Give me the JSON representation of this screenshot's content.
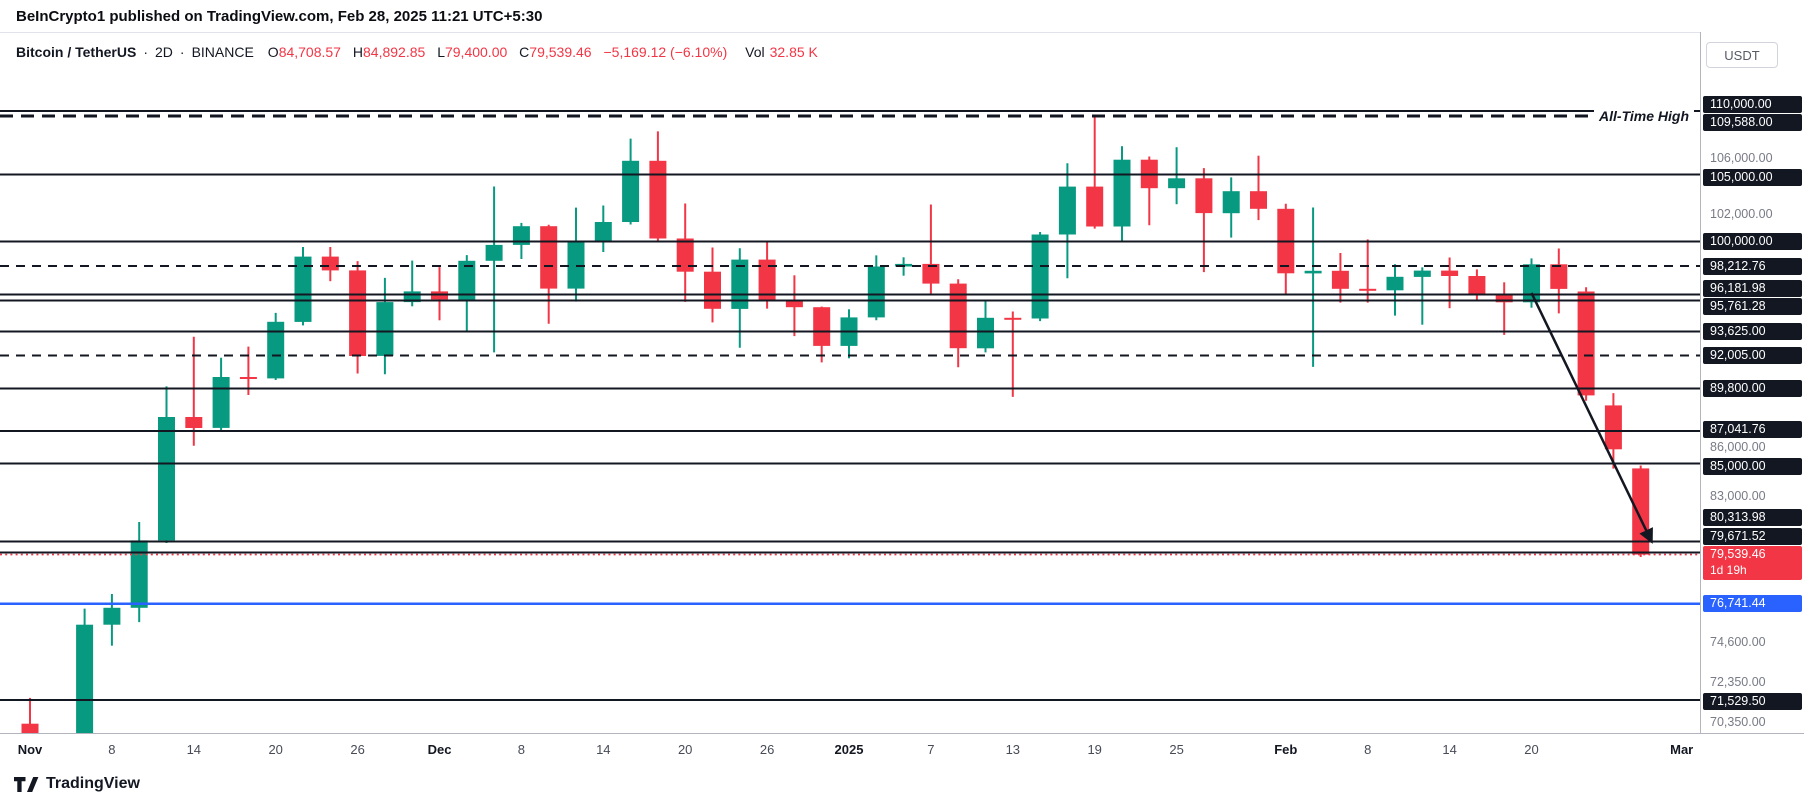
{
  "page": {
    "header": "BeInCrypto1 published on TradingView.com, Feb 28, 2025 11:21 UTC+5:30",
    "footer_logo": "TradingView"
  },
  "currency_button": "USDT",
  "legend": {
    "symbol": "Bitcoin / TetherUS",
    "separator": "·",
    "interval": "2D",
    "exchange": "BINANCE",
    "ohlc": [
      {
        "label": "O",
        "value": "84,708.57"
      },
      {
        "label": "H",
        "value": "84,892.85"
      },
      {
        "label": "L",
        "value": "79,400.00"
      },
      {
        "label": "C",
        "value": "79,539.46"
      }
    ],
    "change": "−5,169.12 (−6.10%)",
    "vol_label": "Vol",
    "vol_value": "32.85 K"
  },
  "colors": {
    "up": "#089981",
    "down": "#F23645",
    "line": "#131722",
    "support_line": "#2962FF",
    "axis_text": "#787B86",
    "badge_bg": "#131722",
    "current_badge_bg": "#F23645",
    "support_badge_bg": "#2962FF"
  },
  "chart_data": {
    "type": "candlestick",
    "symbol": "Bitcoin / TetherUS",
    "exchange": "BINANCE",
    "interval": "2D",
    "quote_currency": "USDT",
    "price_scale_type": "log",
    "grid": false,
    "legend_position": "top-left",
    "up_color": "#089981",
    "down_color": "#F23645",
    "visible_price_range": [
      70350,
      110000
    ],
    "candles_ohlc": [
      [
        70293,
        71632,
        68820,
        69289
      ],
      [
        69289,
        69440,
        66835,
        67811
      ],
      [
        67811,
        76460,
        67478,
        75571
      ],
      [
        75571,
        77283,
        74416,
        76509
      ],
      [
        76509,
        81460,
        75714,
        80370
      ],
      [
        80370,
        89940,
        80216,
        87952
      ],
      [
        87952,
        93265,
        86127,
        87250
      ],
      [
        87250,
        91850,
        87072,
        90558
      ],
      [
        90558,
        92594,
        89376,
        90464
      ],
      [
        90464,
        94905,
        90364,
        94286
      ],
      [
        94286,
        99588,
        94040,
        98892
      ],
      [
        98892,
        99588,
        97128,
        97900
      ],
      [
        97900,
        98564,
        90791,
        91965
      ],
      [
        91965,
        97361,
        90745,
        95652
      ],
      [
        95652,
        98599,
        95364,
        96405
      ],
      [
        96405,
        98130,
        94395,
        95840
      ],
      [
        95840,
        99000,
        93578,
        98587
      ],
      [
        98587,
        104088,
        92205,
        99740
      ],
      [
        99740,
        101351,
        98713,
        101109
      ],
      [
        101109,
        101215,
        94150,
        96604
      ],
      [
        96604,
        102495,
        95689,
        100004
      ],
      [
        100004,
        102650,
        99225,
        101420
      ],
      [
        101420,
        107793,
        101235,
        106058
      ],
      [
        106058,
        108364,
        99950,
        100204
      ],
      [
        100204,
        102800,
        95672,
        97805
      ],
      [
        97805,
        99550,
        94250,
        95186
      ],
      [
        95186,
        99495,
        92520,
        98676
      ],
      [
        98676,
        99963,
        95199,
        95795
      ],
      [
        95795,
        97544,
        93310,
        95300
      ],
      [
        95300,
        95340,
        91530,
        92643
      ],
      [
        92643,
        95151,
        91804,
        94591
      ],
      [
        94591,
        98976,
        94392,
        98174
      ],
      [
        98174,
        98837,
        97515,
        98363
      ],
      [
        98363,
        102724,
        96171,
        96954
      ],
      [
        96954,
        97268,
        91203,
        92484
      ],
      [
        92484,
        95836,
        92206,
        94566
      ],
      [
        94566,
        95000,
        89256,
        94516
      ],
      [
        94516,
        100681,
        94336,
        100497
      ],
      [
        100497,
        105865,
        97335,
        104077
      ],
      [
        104077,
        109588,
        100934,
        101089
      ],
      [
        101089,
        107200,
        99957,
        106146
      ],
      [
        106146,
        106394,
        101180,
        103960
      ],
      [
        103960,
        107120,
        102750,
        104714
      ],
      [
        104714,
        105498,
        97777,
        102082
      ],
      [
        102082,
        104782,
        100272,
        103733
      ],
      [
        103733,
        106457,
        101560,
        102405
      ],
      [
        102405,
        102789,
        96210,
        97688
      ],
      [
        97688,
        102500,
        91231,
        97871
      ],
      [
        97871,
        99149,
        95620,
        96593
      ],
      [
        96593,
        100138,
        95618,
        96482
      ],
      [
        96482,
        98345,
        94714,
        97437
      ],
      [
        97437,
        98119,
        94088,
        97885
      ],
      [
        97885,
        98826,
        95233,
        97500
      ],
      [
        97500,
        97972,
        95791,
        96175
      ],
      [
        96175,
        97047,
        93388,
        95639
      ],
      [
        95639,
        98756,
        95263,
        98333
      ],
      [
        98333,
        99475,
        94871,
        96578
      ],
      [
        96400,
        96700,
        89000,
        89350
      ],
      [
        88700,
        89500,
        84700,
        85900
      ],
      [
        84708.57,
        84892.85,
        79400,
        79539.46
      ]
    ],
    "price_axis_labels": [
      {
        "text": "110,000.00",
        "price": 110000,
        "style": "line"
      },
      {
        "text": "109,588.00",
        "price": 109588,
        "style": "line"
      },
      {
        "text": "106,000.00",
        "price": 106000,
        "style": "tick"
      },
      {
        "text": "105,000.00",
        "price": 105000,
        "style": "line"
      },
      {
        "text": "102,000.00",
        "price": 102000,
        "style": "tick"
      },
      {
        "text": "100,000.00",
        "price": 100000,
        "style": "line"
      },
      {
        "text": "98,212.76",
        "price": 98212.76,
        "style": "line"
      },
      {
        "text": "96,181.98",
        "price": 96181.98,
        "style": "line"
      },
      {
        "text": "95,761.28",
        "price": 95761.28,
        "style": "line"
      },
      {
        "text": "93,625.00",
        "price": 93625,
        "style": "line"
      },
      {
        "text": "92,005.00",
        "price": 92005,
        "style": "line"
      },
      {
        "text": "89,800.00",
        "price": 89800,
        "style": "line"
      },
      {
        "text": "87,041.76",
        "price": 87041.76,
        "style": "line"
      },
      {
        "text": "86,000.00",
        "price": 86000,
        "style": "tick"
      },
      {
        "text": "85,000.00",
        "price": 85000,
        "style": "line"
      },
      {
        "text": "83,000.00",
        "price": 83000,
        "style": "tick"
      },
      {
        "text": "80,313.98",
        "price": 80313.98,
        "style": "line"
      },
      {
        "text": "79,671.52",
        "price": 79671.52,
        "style": "line"
      },
      {
        "text": "79,539.46",
        "price": 79539.46,
        "style": "current",
        "sub": "1d 19h"
      },
      {
        "text": "76,741.44",
        "price": 76741.44,
        "style": "support"
      },
      {
        "text": "74,600.00",
        "price": 74600,
        "style": "tick"
      },
      {
        "text": "72,350.00",
        "price": 72350,
        "style": "tick"
      },
      {
        "text": "71,529.50",
        "price": 71529.5,
        "style": "line"
      },
      {
        "text": "70,350.00",
        "price": 70350,
        "style": "tick"
      }
    ],
    "horizontal_lines": [
      {
        "price": 110000,
        "style": "solid"
      },
      {
        "price": 109588,
        "style": "dashed-bold",
        "label": "All-Time High"
      },
      {
        "price": 105000,
        "style": "solid"
      },
      {
        "price": 100000,
        "style": "solid"
      },
      {
        "price": 98212.76,
        "style": "dashed"
      },
      {
        "price": 96181.98,
        "style": "solid"
      },
      {
        "price": 95761.28,
        "style": "solid"
      },
      {
        "price": 93625,
        "style": "solid"
      },
      {
        "price": 92005,
        "style": "dashed"
      },
      {
        "price": 89800,
        "style": "solid"
      },
      {
        "price": 87041.76,
        "style": "solid"
      },
      {
        "price": 85000,
        "style": "solid"
      },
      {
        "price": 80313.98,
        "style": "solid"
      },
      {
        "price": 79671.52,
        "style": "solid"
      },
      {
        "price": 76741.44,
        "style": "support"
      },
      {
        "price": 71529.5,
        "style": "solid"
      }
    ],
    "current_price": {
      "price": 79539.46,
      "countdown": "1d 19h"
    },
    "time_axis_labels": [
      {
        "label": "Nov",
        "index": 0,
        "major": true
      },
      {
        "label": "8",
        "index": 3
      },
      {
        "label": "14",
        "index": 6
      },
      {
        "label": "20",
        "index": 9
      },
      {
        "label": "26",
        "index": 12
      },
      {
        "label": "Dec",
        "index": 15,
        "major": true
      },
      {
        "label": "8",
        "index": 18
      },
      {
        "label": "14",
        "index": 21
      },
      {
        "label": "20",
        "index": 24
      },
      {
        "label": "26",
        "index": 27
      },
      {
        "label": "2025",
        "index": 30,
        "major": true
      },
      {
        "label": "7",
        "index": 33
      },
      {
        "label": "13",
        "index": 36
      },
      {
        "label": "19",
        "index": 39
      },
      {
        "label": "25",
        "index": 42
      },
      {
        "label": "Feb",
        "index": 46,
        "major": true
      },
      {
        "label": "8",
        "index": 49
      },
      {
        "label": "14",
        "index": 52
      },
      {
        "label": "20",
        "index": 55
      },
      {
        "label": "Mar",
        "index": 60.5,
        "major": true
      }
    ],
    "annotations": {
      "all_time_high_label": "All-Time High",
      "trend_arrow": {
        "from": {
          "index": 55,
          "price": 96300
        },
        "to": {
          "index": 59.4,
          "price": 80300
        }
      }
    }
  }
}
